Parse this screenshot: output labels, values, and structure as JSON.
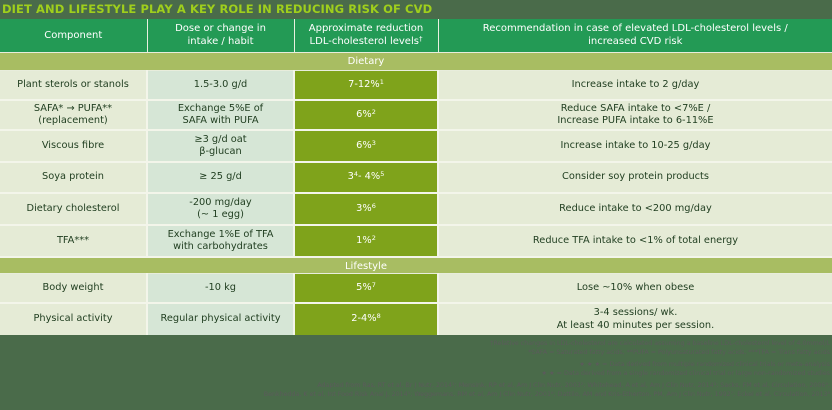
{
  "title": "DIET AND LIFESTYLE PLAY A KEY ROLE IN REDUCING RISK OF CVD",
  "table": {
    "headers": [
      {
        "line1": "Component",
        "line2": ""
      },
      {
        "line1": "Dose or change in",
        "line2": "intake / habit"
      },
      {
        "line1": "Approximate reduction",
        "line2": "LDL-cholesterol levels",
        "sup": "†"
      },
      {
        "line1": "Recommendation in case of elevated LDL-cholesterol levels /",
        "line2": "increased CVD risk"
      }
    ],
    "sections": [
      {
        "label": "Dietary",
        "rows": [
          {
            "component": "Plant sterols or stanols",
            "component2": "",
            "dose": "1.5-3.0 g/d",
            "dose2": "",
            "reduction": "7-12%",
            "reduction_sup": "1",
            "reduction_mid": "",
            "reduction_sup2": "",
            "rec": "Increase intake to 2 g/day",
            "rec2": ""
          },
          {
            "component": "SAFA* → PUFA**",
            "component2": "(replacement)",
            "dose": "Exchange 5%E of",
            "dose2": "SAFA with PUFA",
            "reduction": "6%",
            "reduction_sup": "2",
            "reduction_mid": "",
            "reduction_sup2": "",
            "rec": "Reduce SAFA intake to <7%E /",
            "rec2": "Increase PUFA intake to 6-11%E"
          },
          {
            "component": "Viscous fibre",
            "component2": "",
            "dose": "≥3 g/d oat",
            "dose2": "β-glucan",
            "reduction": "6%",
            "reduction_sup": "3",
            "reduction_mid": "",
            "reduction_sup2": "",
            "rec": "Increase intake to 10-25 g/day",
            "rec2": ""
          },
          {
            "component": "Soya protein",
            "component2": "",
            "dose": "≥ 25 g/d",
            "dose2": "",
            "reduction": "3",
            "reduction_sup": "4",
            "reduction_mid": "- 4%",
            "reduction_sup2": "5",
            "rec": "Consider soy protein products",
            "rec2": ""
          },
          {
            "component": "Dietary cholesterol",
            "component2": "",
            "dose": "-200 mg/day",
            "dose2": "(~ 1 egg)",
            "reduction": "3%",
            "reduction_sup": "6",
            "reduction_mid": "",
            "reduction_sup2": "",
            "rec": "Reduce intake to <200 mg/day",
            "rec2": ""
          },
          {
            "component": "TFA***",
            "component2": "",
            "dose": "Exchange 1%E of TFA",
            "dose2": "with carbohydrates",
            "reduction": "1%",
            "reduction_sup": "2",
            "reduction_mid": "",
            "reduction_sup2": "",
            "rec": "Reduce TFA intake to <1% of total energy",
            "rec2": ""
          }
        ]
      },
      {
        "label": "Lifestyle",
        "rows": [
          {
            "component": "Body weight",
            "component2": "",
            "dose": "-10 kg",
            "dose2": "",
            "reduction": "5%",
            "reduction_sup": "7",
            "reduction_mid": "",
            "reduction_sup2": "",
            "rec": "Lose ~10% when obese",
            "rec2": ""
          },
          {
            "component": "Physical activity",
            "component2": "",
            "dose": "Regular physical activity",
            "dose2": "",
            "reduction": "2-4%",
            "reduction_sup": "8",
            "reduction_mid": "",
            "reduction_sup2": "",
            "rec": "3-4 sessions/ wk.",
            "rec2": "At least 40 minutes per session."
          }
        ]
      }
    ]
  },
  "footer": {
    "notes": [
      "†Relative changes in LDL-cholesterol are calculated assuming a baseline LDL-cholesterol level of 4.0mmol/L",
      "*SAFA = Saturated fatty acids, **PUFA = Polyunsaturated fatty acids, ***TFA = Trans fatty acids",
      "★ ★ ★ = Data derived from multiple randomized clinical trials or meta-analysis",
      "★ ★ = Data derived from a single randomized clinical trial or large non-randomized studies"
    ],
    "sources": [
      "Adapted from Ras, RT et al, Br J Nutr, 2014¹; Mensink, RP et al, Am J Clin Nutr, 2003²; Whitehead, A et al, Am J Clin Nutr, 2014³; Sacks, FM et al, Circulation, 2006⁴;",
      "Benkhedda, K et al, Int Food Risk Anal J, 2014⁵; Weggemans, RM et al, Am J Clin Nutr, 2001⁶; Dattilo, AM and Kris-Etherton, PM, Am J Clin Nutr, 1992⁷; Eckel et al, Circulation, 2013⁸"
    ]
  },
  "colors": {
    "title_bg": "#4a6b4a",
    "title_text": "#9fcf1c",
    "header_bg": "#239a55",
    "section_bg": "#a8bd62",
    "reduction_bg": "#7fa31b",
    "component_bg": "#e5ebd6",
    "dose_bg": "#d6e6d6"
  }
}
